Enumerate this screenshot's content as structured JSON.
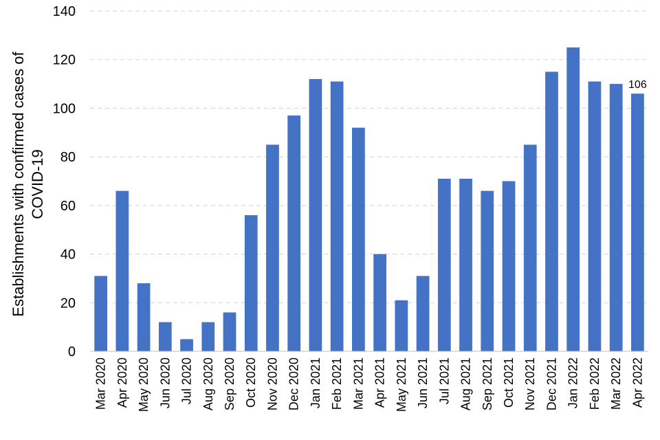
{
  "chart_data": {
    "type": "bar",
    "title": "",
    "xlabel": "",
    "ylabel": "Establishments with confirmed cases of COVID-19",
    "ylabel_lines": [
      "Establishments with confirmed cases of",
      "COVID-19"
    ],
    "categories": [
      "Mar 2020",
      "Apr 2020",
      "May 2020",
      "Jun 2020",
      "Jul 2020",
      "Aug 2020",
      "Sep 2020",
      "Oct 2020",
      "Nov 2020",
      "Dec 2020",
      "Jan 2021",
      "Feb 2021",
      "Mar 2021",
      "Apr 2021",
      "May 2021",
      "Jun 2021",
      "Jul 2021",
      "Aug 2021",
      "Sep 2021",
      "Oct 2021",
      "Nov 2021",
      "Dec 2021",
      "Jan 2022",
      "Feb 2022",
      "Mar 2022",
      "Apr 2022"
    ],
    "values": [
      31,
      66,
      28,
      12,
      5,
      12,
      16,
      56,
      85,
      97,
      112,
      111,
      92,
      40,
      21,
      31,
      71,
      71,
      66,
      70,
      85,
      115,
      125,
      111,
      110,
      106
    ],
    "ylim": [
      0,
      140
    ],
    "yticks": [
      "0",
      "20",
      "40",
      "60",
      "80",
      "100",
      "120",
      "140"
    ],
    "grid": true,
    "bar_color": "#4472c4",
    "annotations": [
      {
        "category": "Apr 2022",
        "text": "106"
      }
    ]
  }
}
